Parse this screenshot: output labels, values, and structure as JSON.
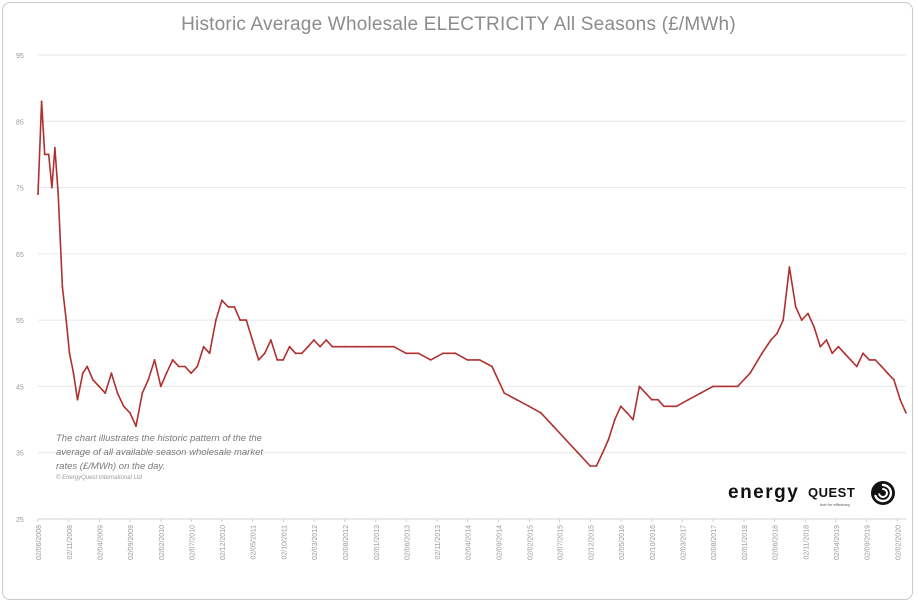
{
  "chart_data": {
    "type": "line",
    "title": "Historic Average Wholesale ELECTRICITY All Seasons (£/MWh)",
    "xlabel": "",
    "ylabel": "",
    "ylim": [
      25,
      95
    ],
    "yticks": [
      25,
      35,
      45,
      55,
      65,
      75,
      85,
      95
    ],
    "grid": true,
    "x_tick_labels": [
      "02/06/2008",
      "02/11/2008",
      "02/04/2009",
      "02/09/2009",
      "02/02/2010",
      "02/07/2010",
      "02/12/2010",
      "02/05/2011",
      "02/10/2011",
      "02/03/2012",
      "02/08/2012",
      "02/01/2013",
      "02/06/2013",
      "02/11/2013",
      "02/04/2014",
      "02/09/2014",
      "02/02/2015",
      "02/07/2015",
      "02/12/2015",
      "02/05/2016",
      "02/10/2016",
      "02/03/2017",
      "02/08/2017",
      "02/01/2018",
      "02/06/2018",
      "02/11/2018",
      "02/04/2019",
      "02/09/2019",
      "02/02/2020"
    ],
    "series": [
      {
        "color": "#b03030",
        "x": [
          "2008-06-02",
          "2008-06-20",
          "2008-07-05",
          "2008-07-25",
          "2008-08-10",
          "2008-08-25",
          "2008-09-10",
          "2008-10-01",
          "2008-10-20",
          "2008-11-05",
          "2008-11-25",
          "2008-12-15",
          "2009-01-10",
          "2009-02-01",
          "2009-03-01",
          "2009-04-01",
          "2009-05-01",
          "2009-06-01",
          "2009-07-01",
          "2009-08-01",
          "2009-09-01",
          "2009-10-01",
          "2009-11-01",
          "2009-12-01",
          "2010-01-01",
          "2010-02-01",
          "2010-03-01",
          "2010-04-01",
          "2010-05-01",
          "2010-06-01",
          "2010-07-01",
          "2010-08-01",
          "2010-09-01",
          "2010-10-01",
          "2010-11-01",
          "2010-12-01",
          "2011-01-01",
          "2011-02-01",
          "2011-03-01",
          "2011-04-01",
          "2011-05-01",
          "2011-06-01",
          "2011-07-01",
          "2011-08-01",
          "2011-09-01",
          "2011-10-01",
          "2011-11-01",
          "2011-12-01",
          "2012-01-01",
          "2012-02-01",
          "2012-03-01",
          "2012-04-01",
          "2012-05-01",
          "2012-06-01",
          "2012-08-01",
          "2012-10-01",
          "2012-12-01",
          "2013-02-01",
          "2013-04-01",
          "2013-06-01",
          "2013-08-01",
          "2013-10-01",
          "2013-12-01",
          "2014-02-01",
          "2014-04-01",
          "2014-06-01",
          "2014-08-01",
          "2014-10-01",
          "2014-12-01",
          "2015-02-01",
          "2015-04-01",
          "2015-06-01",
          "2015-08-01",
          "2015-10-01",
          "2015-12-01",
          "2016-01-01",
          "2016-02-01",
          "2016-03-01",
          "2016-04-01",
          "2016-05-01",
          "2016-06-01",
          "2016-07-01",
          "2016-08-01",
          "2016-09-01",
          "2016-10-01",
          "2016-11-01",
          "2016-12-01",
          "2017-02-01",
          "2017-04-01",
          "2017-06-01",
          "2017-08-01",
          "2017-10-01",
          "2017-12-01",
          "2018-02-01",
          "2018-04-01",
          "2018-05-15",
          "2018-06-15",
          "2018-07-15",
          "2018-08-15",
          "2018-09-15",
          "2018-10-15",
          "2018-11-15",
          "2018-12-15",
          "2019-01-15",
          "2019-02-15",
          "2019-03-15",
          "2019-04-15",
          "2019-05-15",
          "2019-06-15",
          "2019-07-15",
          "2019-08-15",
          "2019-09-15",
          "2019-10-15",
          "2019-11-15",
          "2019-12-15",
          "2020-01-15",
          "2020-02-15",
          "2020-03-15"
        ],
        "values": [
          74,
          88,
          80,
          80,
          75,
          81,
          74,
          60,
          55,
          50,
          47,
          43,
          47,
          48,
          46,
          45,
          44,
          47,
          44,
          42,
          41,
          39,
          44,
          46,
          49,
          45,
          47,
          49,
          48,
          48,
          47,
          48,
          51,
          50,
          55,
          58,
          57,
          57,
          55,
          55,
          52,
          49,
          50,
          52,
          49,
          49,
          51,
          50,
          50,
          51,
          52,
          51,
          52,
          51,
          51,
          51,
          51,
          51,
          51,
          50,
          50,
          49,
          50,
          50,
          49,
          49,
          48,
          44,
          43,
          42,
          41,
          39,
          37,
          35,
          33,
          33,
          35,
          37,
          40,
          42,
          41,
          40,
          45,
          44,
          43,
          43,
          42,
          42,
          43,
          44,
          45,
          45,
          45,
          47,
          50,
          52,
          53,
          55,
          63,
          57,
          55,
          56,
          54,
          51,
          52,
          50,
          51,
          50,
          49,
          48,
          50,
          49,
          49,
          48,
          47,
          46,
          43,
          41
        ]
      }
    ],
    "annotation": "The chart illustrates the historic pattern of the the average of all available season wholesale market rates (£/MWh) on the day.",
    "copyright": "© EnergyQuest International Ltd"
  },
  "logo": {
    "word_a": "energy",
    "word_b": "QUEST",
    "tagline": "fuel for efficiency"
  },
  "colors": {
    "line": "#b03030",
    "grid": "#e6e6e6",
    "axis_text": "#9a9a9a"
  }
}
